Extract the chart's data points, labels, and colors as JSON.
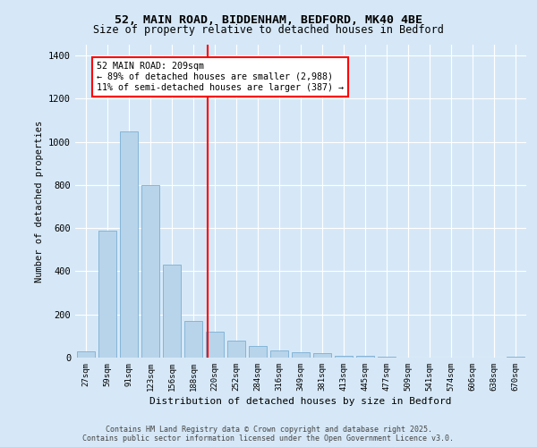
{
  "title1": "52, MAIN ROAD, BIDDENHAM, BEDFORD, MK40 4BE",
  "title2": "Size of property relative to detached houses in Bedford",
  "xlabel": "Distribution of detached houses by size in Bedford",
  "ylabel": "Number of detached properties",
  "categories": [
    "27sqm",
    "59sqm",
    "91sqm",
    "123sqm",
    "156sqm",
    "188sqm",
    "220sqm",
    "252sqm",
    "284sqm",
    "316sqm",
    "349sqm",
    "381sqm",
    "413sqm",
    "445sqm",
    "477sqm",
    "509sqm",
    "541sqm",
    "574sqm",
    "606sqm",
    "638sqm",
    "670sqm"
  ],
  "values": [
    30,
    590,
    1050,
    800,
    430,
    170,
    120,
    80,
    55,
    35,
    25,
    20,
    10,
    8,
    5,
    0,
    0,
    0,
    0,
    0,
    5
  ],
  "bar_color": "#b8d4ea",
  "bar_edge_color": "#7aafd4",
  "annotation_text": "52 MAIN ROAD: 209sqm\n← 89% of detached houses are smaller (2,988)\n11% of semi-detached houses are larger (387) →",
  "ylim": [
    0,
    1450
  ],
  "yticks": [
    0,
    200,
    400,
    600,
    800,
    1000,
    1200,
    1400
  ],
  "background_color": "#d6e8f7",
  "plot_bg_color": "#d6e8f7",
  "footer1": "Contains HM Land Registry data © Crown copyright and database right 2025.",
  "footer2": "Contains public sector information licensed under the Open Government Licence v3.0."
}
